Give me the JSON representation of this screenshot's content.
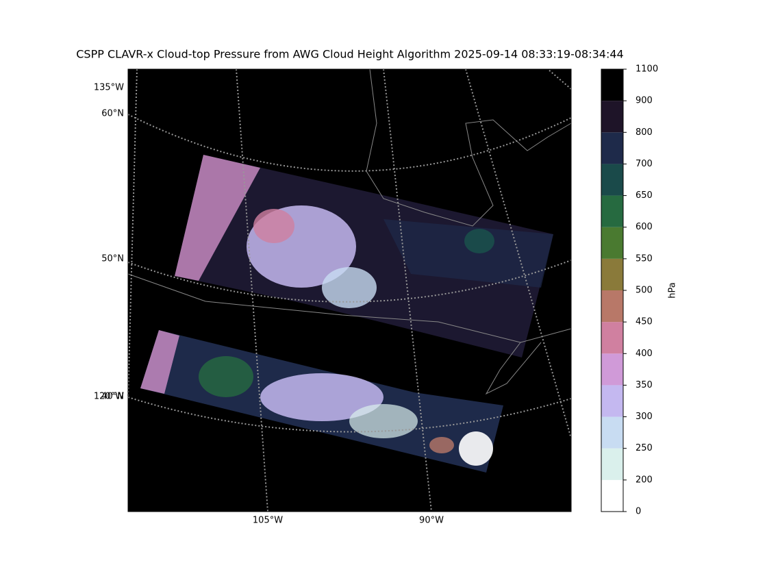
{
  "map": {
    "title": "CSPP CLAVR-x Cloud-top Pressure from AWG Cloud Height Algorithm 2025-09-14 08:33:19-08:34:44",
    "graticule_labels": [
      "135°W",
      "60°N",
      "50°N",
      "120°W",
      "40°N",
      "105°W",
      "90°W"
    ],
    "colorbar": {
      "label": "hPa",
      "bounds": [
        0,
        200,
        250,
        300,
        350,
        400,
        450,
        500,
        550,
        600,
        650,
        700,
        800,
        900,
        1100
      ],
      "colors": [
        "#ffffff",
        "#daf0ec",
        "#c8dcf2",
        "#c4b8f0",
        "#d09ad8",
        "#d080a0",
        "#b87868",
        "#8a7a3a",
        "#4a7a30",
        "#266a40",
        "#1a4a4a",
        "#1e2a4a",
        "#1e1428",
        "#000000"
      ]
    }
  }
}
